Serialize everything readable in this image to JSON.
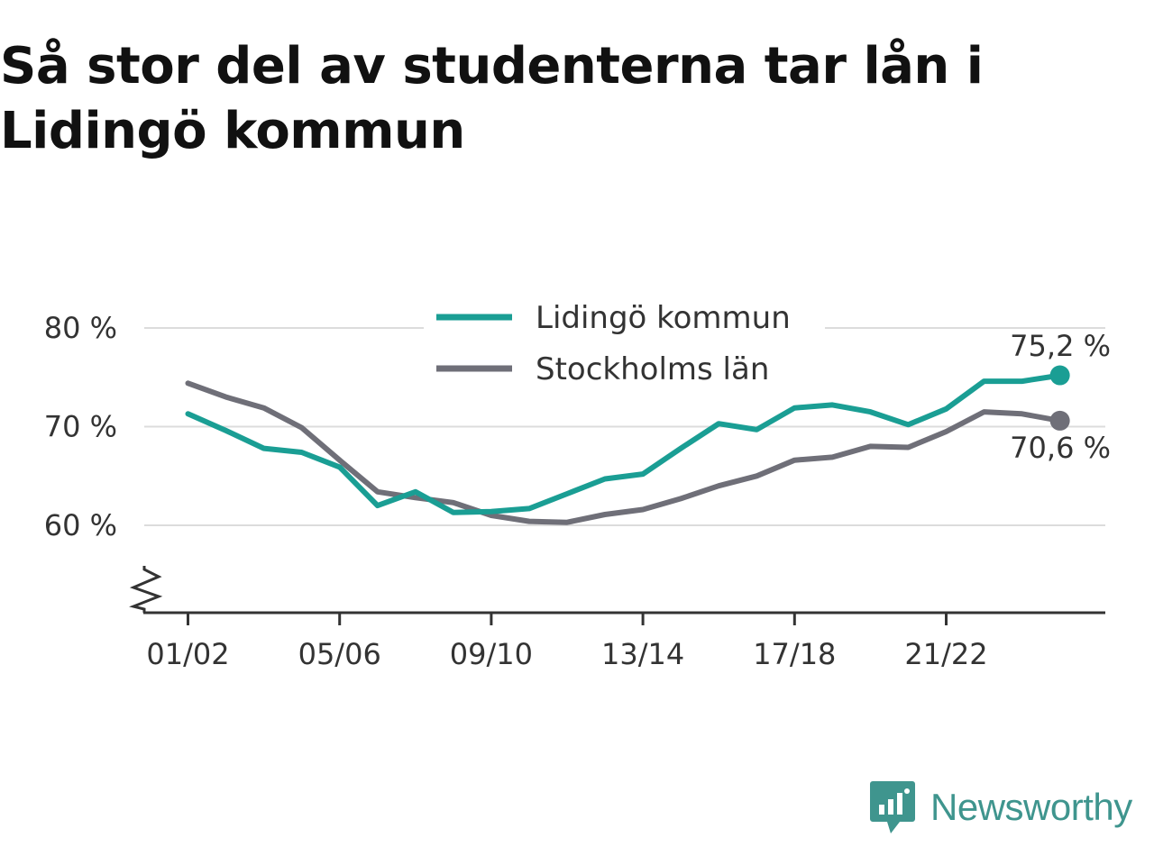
{
  "title": "Så stor del av studenterna tar lån i Lidingö kommun",
  "brand": {
    "name": "Newsworthy",
    "icon": "bar-chart-speech-bubble-icon",
    "color": "#3f958e"
  },
  "chart_data": {
    "type": "line",
    "title": "Så stor del av studenterna tar lån i Lidingö kommun",
    "xlabel": "",
    "ylabel": "",
    "ylim": [
      51,
      82
    ],
    "y_ticks": [
      60,
      70,
      80
    ],
    "y_tick_labels": [
      "60 %",
      "70 %",
      "80 %"
    ],
    "y_axis_break": true,
    "grid": true,
    "legend_position": "top-center",
    "x": [
      "01/02",
      "02/03",
      "03/04",
      "04/05",
      "05/06",
      "06/07",
      "07/08",
      "08/09",
      "09/10",
      "10/11",
      "11/12",
      "12/13",
      "13/14",
      "14/15",
      "15/16",
      "16/17",
      "17/18",
      "18/19",
      "19/20",
      "20/21",
      "21/22",
      "22/23",
      "23/24",
      "24/25"
    ],
    "x_tick_labels": [
      "01/02",
      "05/06",
      "09/10",
      "13/14",
      "17/18",
      "21/22"
    ],
    "series": [
      {
        "name": "Lidingö kommun",
        "color": "#1a9e94",
        "values": [
          71.3,
          69.6,
          67.8,
          67.4,
          65.9,
          62.0,
          63.4,
          61.3,
          61.4,
          61.7,
          63.2,
          64.7,
          65.2,
          67.8,
          70.3,
          69.7,
          71.9,
          72.2,
          71.5,
          70.2,
          71.8,
          74.6,
          74.6,
          75.2
        ],
        "end_label": "75,2 %"
      },
      {
        "name": "Stockholms län",
        "color": "#6f6f78",
        "values": [
          74.4,
          73.0,
          71.9,
          69.9,
          66.6,
          63.4,
          62.8,
          62.3,
          61.0,
          60.4,
          60.3,
          61.1,
          61.6,
          62.7,
          64.0,
          65.0,
          66.6,
          66.9,
          68.0,
          67.9,
          69.5,
          71.5,
          71.3,
          70.6
        ],
        "end_label": "70,6 %"
      }
    ]
  }
}
